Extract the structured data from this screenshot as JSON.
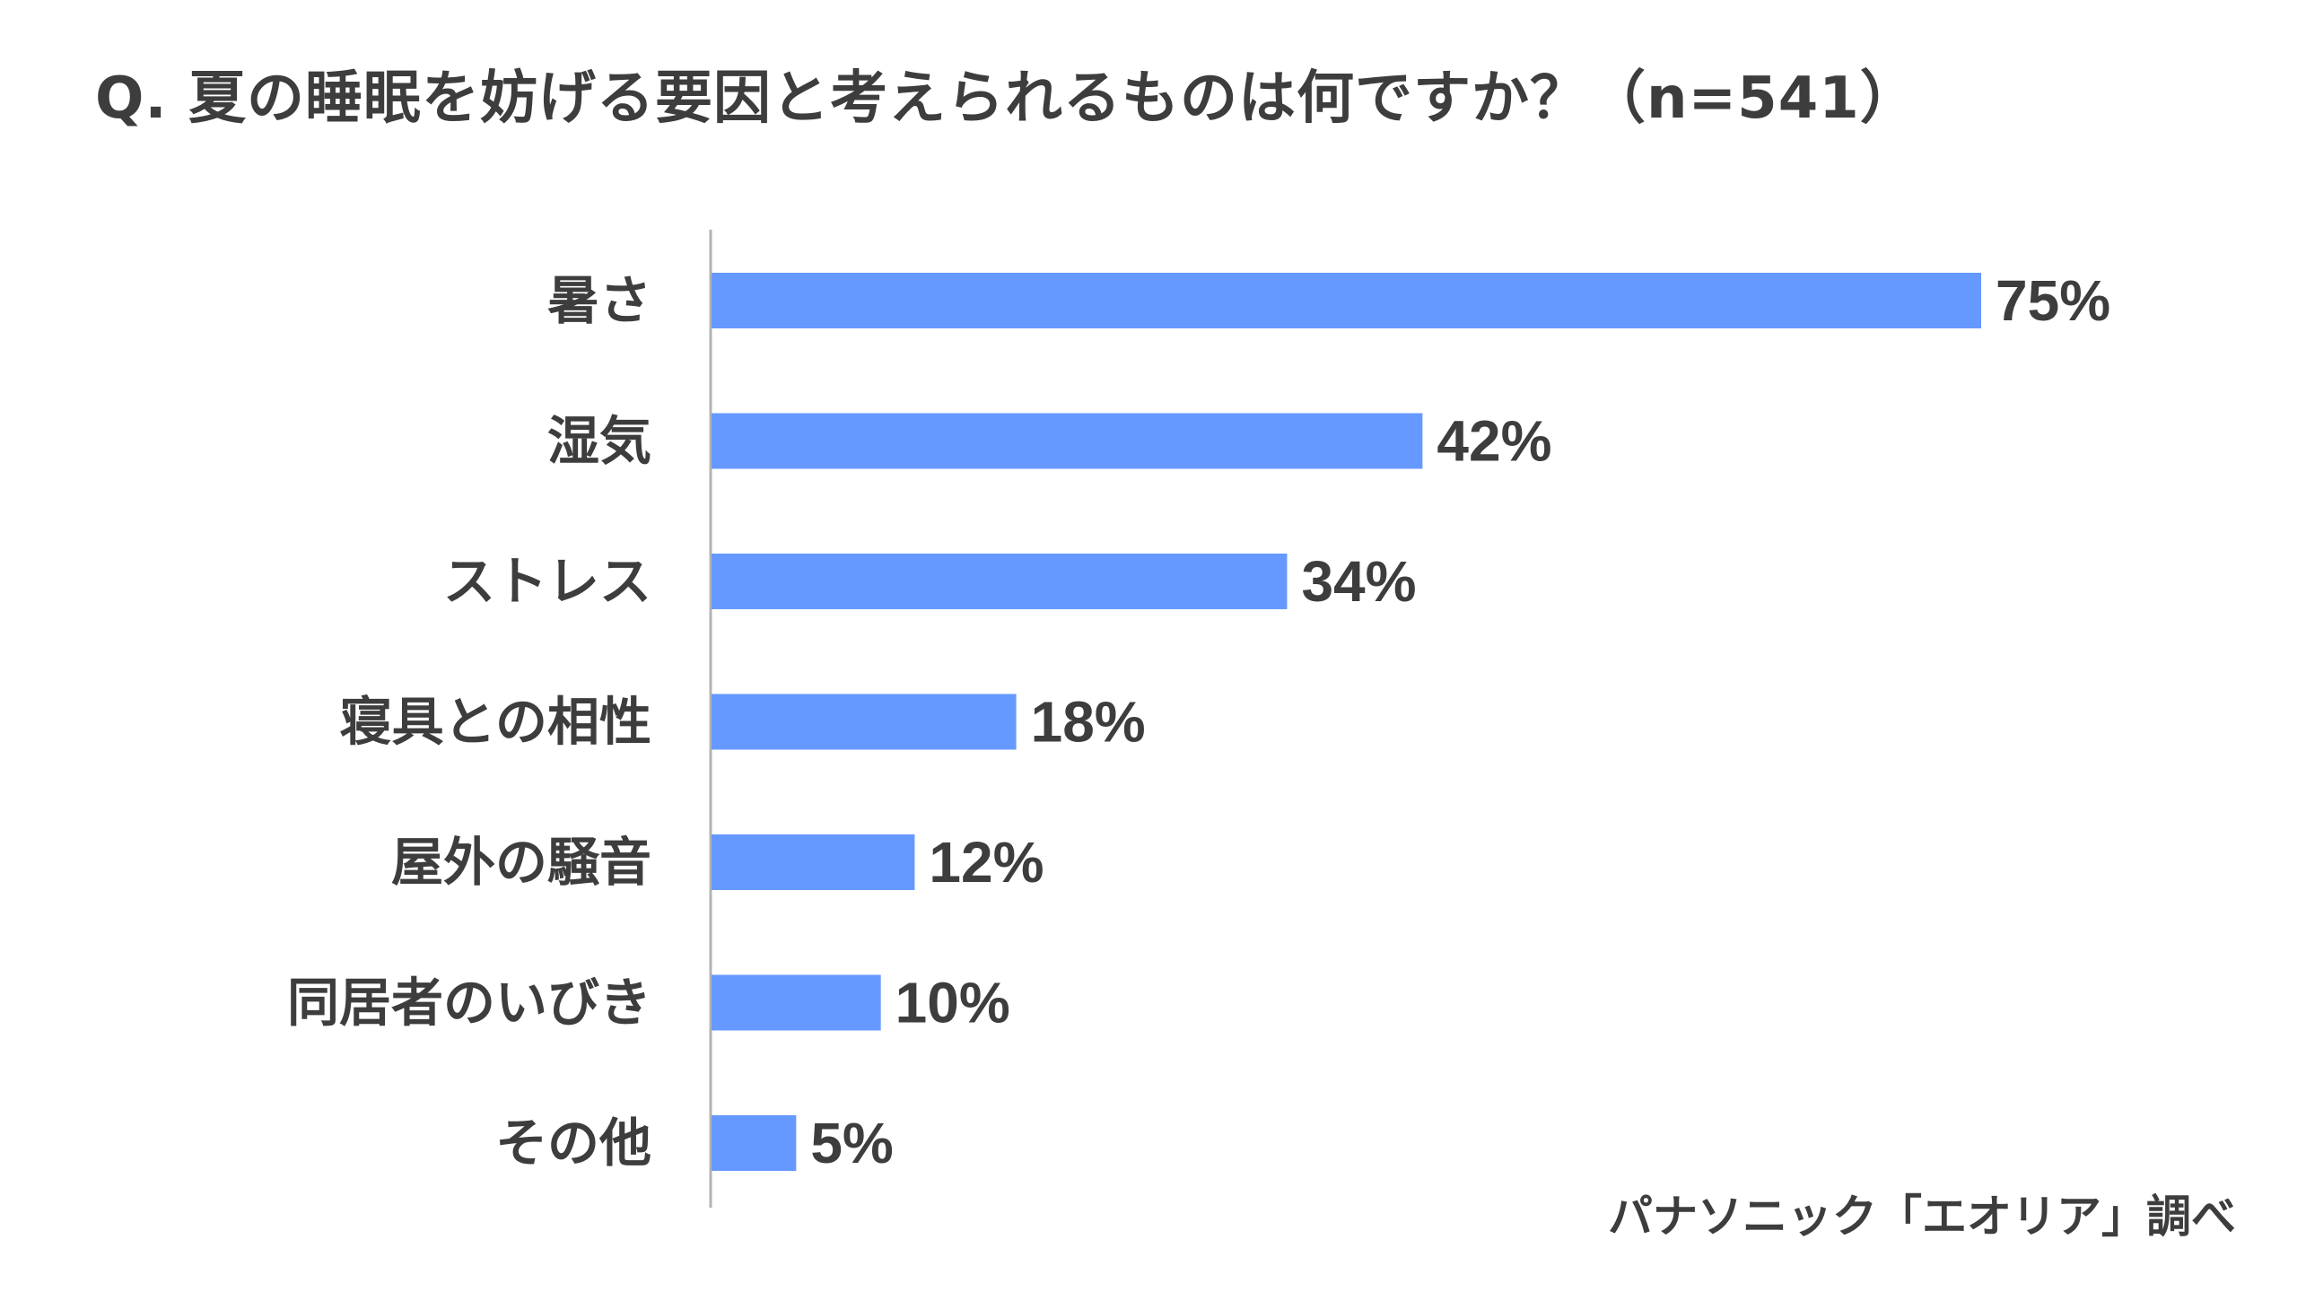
{
  "chart_data": {
    "type": "bar",
    "orientation": "horizontal",
    "title": "Q. 夏の睡眠を妨げる要因と考えられるものは何ですか？（n=541）",
    "categories": [
      "暑さ",
      "湿気",
      "ストレス",
      "寝具との相性",
      "屋外の騒音",
      "同居者のいびき",
      "その他"
    ],
    "values": [
      75,
      42,
      34,
      18,
      12,
      10,
      5
    ],
    "value_labels": [
      "75%",
      "42%",
      "34%",
      "18%",
      "12%",
      "10%",
      "5%"
    ],
    "unit": "%",
    "xlim": [
      0,
      100
    ],
    "grid": false,
    "legend": "none",
    "source": "パナソニック「エオリア」調べ",
    "colors": {
      "bar": "#6699FF",
      "axis": "#b3b3b3",
      "text": "#3d3d3d"
    }
  }
}
